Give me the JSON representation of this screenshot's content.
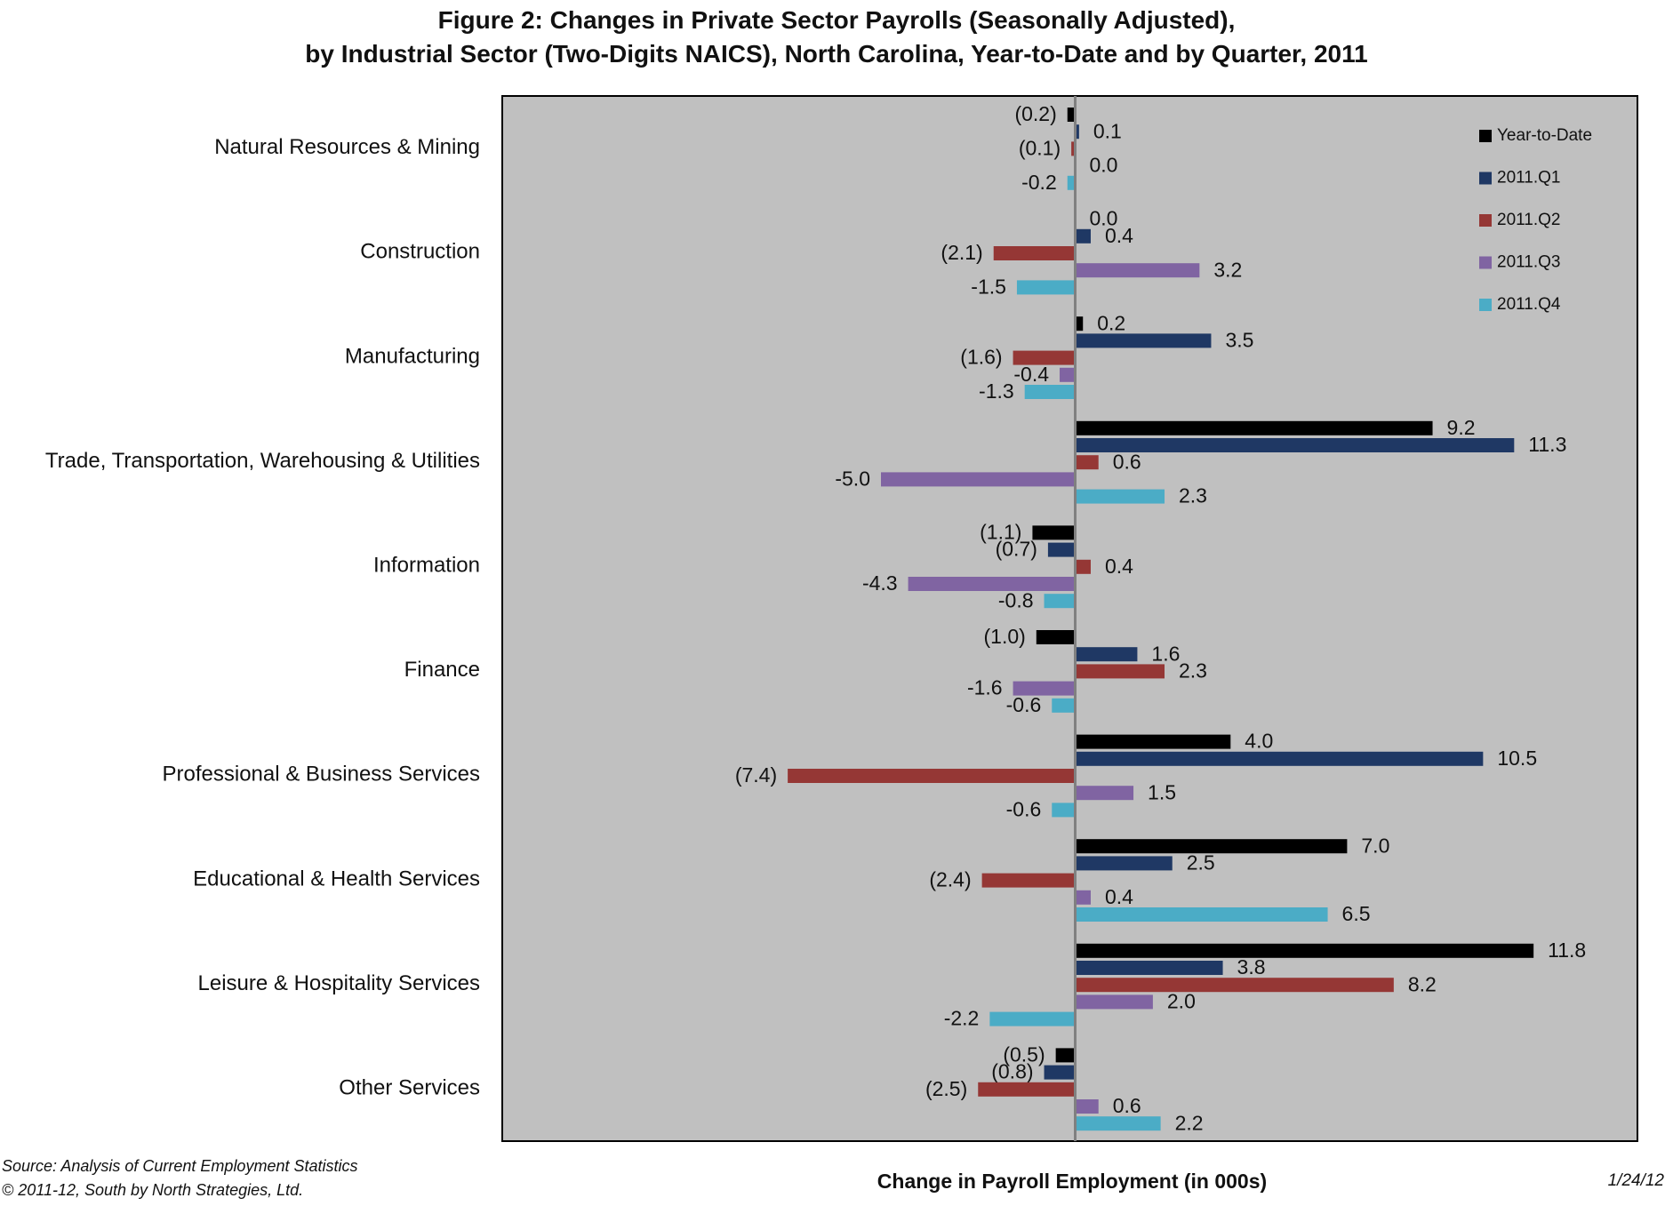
{
  "figure": {
    "title_line1": "Figure 2: Changes in Private Sector Payrolls (Seasonally Adjusted),",
    "title_line2": "by Industrial Sector (Two-Digits NAICS), North Carolina, Year-to-Date and by Quarter, 2011",
    "source": "Source: Analysis of Current Employment Statistics",
    "copyright": "© 2011-12, South by North Strategies, Ltd.",
    "date": "1/24/12"
  },
  "chart_data": {
    "type": "bar",
    "orientation": "horizontal",
    "xlabel": "Change in Payroll Employment (in 000s)",
    "xlim": [
      -13,
      13
    ],
    "grid": false,
    "legend_position": "top-right",
    "plot_background": "#c0c0c0",
    "categories": [
      "Natural Resources & Mining",
      "Construction",
      "Manufacturing",
      "Trade, Transportation, Warehousing & Utilities",
      "Information",
      "Finance",
      "Professional & Business Services",
      "Educational & Health Services",
      "Leisure & Hospitality Services",
      "Other Services"
    ],
    "series": [
      {
        "name": "Year-to-Date",
        "color": "#000000",
        "values": [
          -0.2,
          0.0,
          0.2,
          9.2,
          -1.1,
          -1.0,
          4.0,
          7.0,
          11.8,
          -0.5
        ],
        "labels": [
          "(0.2)",
          "0.0",
          "0.2",
          "9.2",
          "(1.1)",
          "(1.0)",
          "4.0",
          "7.0",
          "11.8",
          "(0.5)"
        ]
      },
      {
        "name": "2011.Q1",
        "color": "#1f3864",
        "values": [
          0.1,
          0.4,
          3.5,
          11.3,
          -0.7,
          1.6,
          10.5,
          2.5,
          3.8,
          -0.8
        ],
        "labels": [
          "0.1",
          "0.4",
          "3.5",
          "11.3",
          "(0.7)",
          "1.6",
          "10.5",
          "2.5",
          "3.8",
          "(0.8)"
        ]
      },
      {
        "name": "2011.Q2",
        "color": "#953735",
        "values": [
          -0.1,
          -2.1,
          -1.6,
          0.6,
          0.4,
          2.3,
          -7.4,
          -2.4,
          8.2,
          -2.5
        ],
        "labels": [
          "(0.1)",
          "(2.1)",
          "(1.6)",
          "0.6",
          "0.4",
          "2.3",
          "(7.4)",
          "(2.4)",
          "8.2",
          "(2.5)"
        ]
      },
      {
        "name": "2011.Q3",
        "color": "#8064a2",
        "values": [
          0.0,
          3.2,
          -0.4,
          -5.0,
          -4.3,
          -1.6,
          1.5,
          0.4,
          2.0,
          0.6
        ],
        "labels": [
          "0.0",
          "3.2",
          "-0.4",
          "-5.0",
          "-4.3",
          "-1.6",
          "1.5",
          "0.4",
          "2.0",
          "0.6"
        ]
      },
      {
        "name": "2011.Q4",
        "color": "#4bacc6",
        "values": [
          -0.2,
          -1.5,
          -1.3,
          2.3,
          -0.8,
          -0.6,
          -0.6,
          6.5,
          -2.2,
          2.2
        ],
        "labels": [
          "-0.2",
          "-1.5",
          "-1.3",
          "2.3",
          "-0.8",
          "-0.6",
          "-0.6",
          "6.5",
          "-2.2",
          "2.2"
        ]
      }
    ]
  }
}
